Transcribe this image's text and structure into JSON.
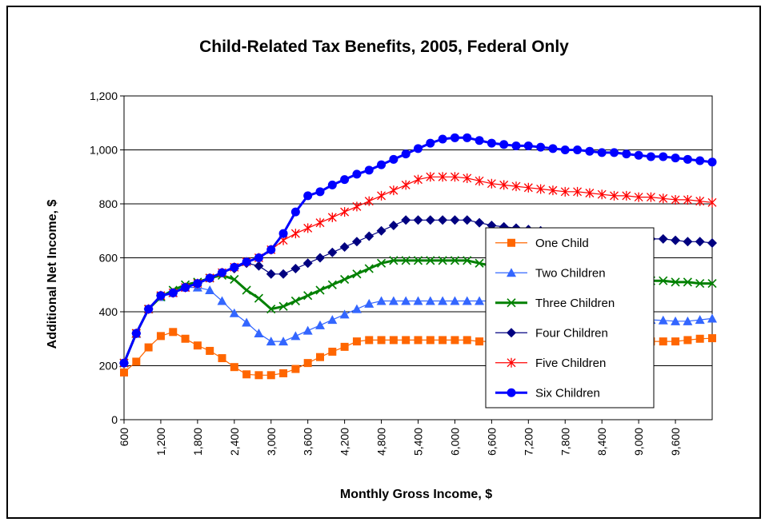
{
  "chart_data": {
    "type": "line",
    "title": "Child-Related Tax Benefits, 2005, Federal Only",
    "xlabel": "Monthly Gross Income, $",
    "ylabel": "Additional Net Income, $",
    "ylim": [
      0,
      1200
    ],
    "yticks": [
      0,
      200,
      400,
      600,
      800,
      1000,
      1200
    ],
    "ytick_labels": [
      "0",
      "200",
      "400",
      "600",
      "800",
      "1,000",
      "1,200"
    ],
    "xlim": [
      600,
      10200
    ],
    "xtick_values": [
      600,
      1200,
      1800,
      2400,
      3000,
      3600,
      4200,
      4800,
      5400,
      6000,
      6600,
      7200,
      7800,
      8400,
      9000,
      9600
    ],
    "xtick_labels": [
      "600",
      "1,200",
      "1,800",
      "2,400",
      "3,000",
      "3,600",
      "4,200",
      "4,800",
      "5,400",
      "6,000",
      "6,600",
      "7,200",
      "7,800",
      "8,400",
      "9,000",
      "9,600"
    ],
    "grid": "horizontal",
    "legend_position": "right",
    "x": [
      600,
      800,
      1000,
      1200,
      1400,
      1600,
      1800,
      2000,
      2200,
      2400,
      2600,
      2800,
      3000,
      3200,
      3400,
      3600,
      3800,
      4000,
      4200,
      4400,
      4600,
      4800,
      5000,
      5200,
      5400,
      5600,
      5800,
      6000,
      6200,
      6400,
      6600,
      6800,
      7000,
      7200,
      7400,
      7600,
      7800,
      8000,
      8200,
      8400,
      8600,
      8800,
      9000,
      9200,
      9400,
      9600,
      9800,
      10000,
      10200
    ],
    "series": [
      {
        "name": "One Child",
        "color": "#FF6600",
        "marker": "square",
        "line_width": 1.2,
        "values": [
          175,
          215,
          268,
          310,
          325,
          300,
          275,
          255,
          228,
          195,
          168,
          165,
          165,
          172,
          188,
          210,
          232,
          252,
          270,
          290,
          295,
          295,
          295,
          295,
          295,
          295,
          295,
          295,
          295,
          290,
          290,
          290,
          290,
          290,
          290,
          290,
          290,
          290,
          290,
          290,
          290,
          290,
          290,
          290,
          290,
          290,
          295,
          300,
          302
        ]
      },
      {
        "name": "Two Children",
        "color": "#3366FF",
        "marker": "triangle",
        "line_width": 1.2,
        "values": [
          210,
          318,
          410,
          455,
          470,
          490,
          490,
          480,
          440,
          395,
          360,
          320,
          290,
          290,
          310,
          330,
          350,
          370,
          390,
          410,
          430,
          440,
          440,
          440,
          440,
          440,
          440,
          440,
          440,
          440,
          440,
          440,
          430,
          420,
          410,
          400,
          395,
          390,
          385,
          380,
          378,
          375,
          372,
          370,
          368,
          365,
          365,
          370,
          375
        ]
      },
      {
        "name": "Three Children",
        "color": "#008000",
        "marker": "x",
        "line_width": 3,
        "values": [
          210,
          320,
          410,
          455,
          480,
          500,
          510,
          525,
          535,
          520,
          480,
          450,
          410,
          420,
          440,
          460,
          480,
          500,
          520,
          540,
          560,
          580,
          590,
          590,
          590,
          590,
          590,
          590,
          590,
          580,
          570,
          560,
          560,
          555,
          550,
          545,
          540,
          535,
          530,
          525,
          525,
          520,
          520,
          515,
          515,
          510,
          510,
          505,
          505
        ]
      },
      {
        "name": "Four Children",
        "color": "#000080",
        "marker": "diamond",
        "line_width": 1.2,
        "values": [
          210,
          320,
          410,
          460,
          470,
          490,
          505,
          525,
          545,
          560,
          580,
          570,
          540,
          540,
          560,
          580,
          600,
          620,
          640,
          660,
          680,
          700,
          720,
          740,
          740,
          740,
          740,
          740,
          740,
          730,
          720,
          715,
          710,
          705,
          700,
          695,
          690,
          690,
          685,
          685,
          680,
          680,
          675,
          670,
          670,
          665,
          660,
          660,
          655
        ]
      },
      {
        "name": "Five Children",
        "color": "#FF0000",
        "marker": "star",
        "line_width": 1.2,
        "values": [
          210,
          320,
          410,
          460,
          470,
          490,
          505,
          525,
          545,
          565,
          585,
          600,
          630,
          665,
          690,
          710,
          730,
          750,
          770,
          790,
          810,
          830,
          850,
          870,
          890,
          900,
          900,
          900,
          895,
          885,
          875,
          870,
          865,
          860,
          855,
          850,
          845,
          845,
          840,
          835,
          830,
          830,
          825,
          825,
          820,
          815,
          815,
          810,
          805
        ]
      },
      {
        "name": "Six Children",
        "color": "#0000FF",
        "marker": "circle",
        "line_width": 3,
        "values": [
          210,
          320,
          410,
          460,
          470,
          490,
          505,
          525,
          545,
          565,
          585,
          600,
          630,
          690,
          770,
          830,
          845,
          870,
          890,
          910,
          925,
          945,
          965,
          985,
          1005,
          1025,
          1040,
          1045,
          1045,
          1035,
          1025,
          1020,
          1015,
          1015,
          1010,
          1005,
          1000,
          1000,
          995,
          990,
          990,
          985,
          980,
          975,
          975,
          970,
          965,
          960,
          955
        ]
      }
    ]
  }
}
